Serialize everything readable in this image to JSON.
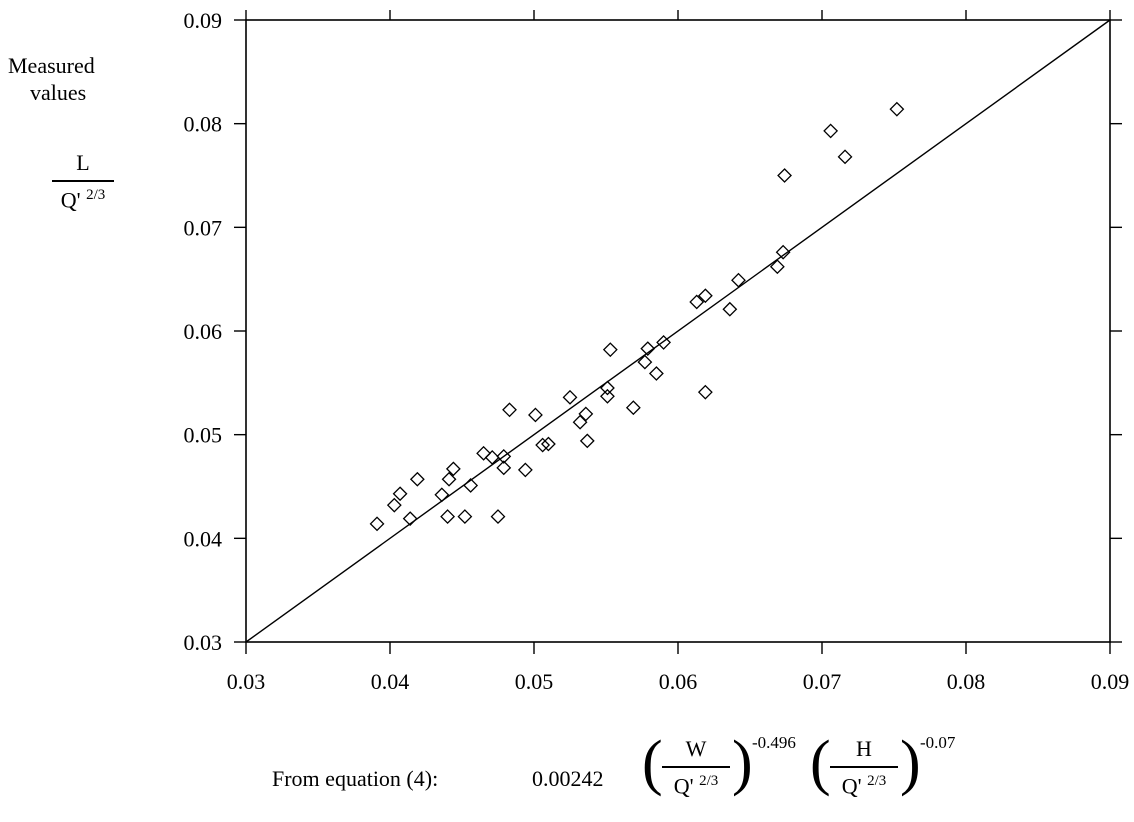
{
  "y_label": {
    "line1": "Measured",
    "line2": "values",
    "num": "L",
    "den_base": "Q'",
    "den_exp": "2/3"
  },
  "x_label": {
    "prefix": "From equation (4):",
    "coef": "0.00242",
    "frac1_num": "W",
    "frac1_den_base": "Q'",
    "frac1_den_exp": "2/3",
    "exp1": "-0.496",
    "frac2_num": "H",
    "frac2_den_base": "Q'",
    "frac2_den_exp": "2/3",
    "exp2": "-0.07"
  },
  "chart_data": {
    "type": "scatter",
    "title": "",
    "xlim": [
      0.03,
      0.09
    ],
    "ylim": [
      0.03,
      0.09
    ],
    "xticks": [
      "0.03",
      "0.04",
      "0.05",
      "0.06",
      "0.07",
      "0.08",
      "0.09"
    ],
    "yticks": [
      "0.03",
      "0.04",
      "0.05",
      "0.06",
      "0.07",
      "0.08",
      "0.09"
    ],
    "grid": false,
    "marker": "diamond",
    "reference_line": [
      [
        0.03,
        0.03
      ],
      [
        0.09,
        0.09
      ]
    ],
    "points": [
      [
        0.0391,
        0.0414
      ],
      [
        0.0403,
        0.0432
      ],
      [
        0.0407,
        0.0443
      ],
      [
        0.0414,
        0.0419
      ],
      [
        0.0419,
        0.0457
      ],
      [
        0.0436,
        0.0442
      ],
      [
        0.044,
        0.0421
      ],
      [
        0.0441,
        0.0457
      ],
      [
        0.0444,
        0.0467
      ],
      [
        0.0452,
        0.0421
      ],
      [
        0.0456,
        0.0451
      ],
      [
        0.0465,
        0.0482
      ],
      [
        0.0471,
        0.0478
      ],
      [
        0.0475,
        0.0421
      ],
      [
        0.0479,
        0.0479
      ],
      [
        0.0479,
        0.0468
      ],
      [
        0.0483,
        0.0524
      ],
      [
        0.0494,
        0.0466
      ],
      [
        0.0501,
        0.0519
      ],
      [
        0.0506,
        0.049
      ],
      [
        0.051,
        0.0491
      ],
      [
        0.0525,
        0.0536
      ],
      [
        0.0532,
        0.0512
      ],
      [
        0.0536,
        0.052
      ],
      [
        0.0537,
        0.0494
      ],
      [
        0.0551,
        0.0545
      ],
      [
        0.0551,
        0.0537
      ],
      [
        0.0553,
        0.0582
      ],
      [
        0.0569,
        0.0526
      ],
      [
        0.0577,
        0.057
      ],
      [
        0.0579,
        0.0583
      ],
      [
        0.0585,
        0.0559
      ],
      [
        0.059,
        0.0589
      ],
      [
        0.0613,
        0.0628
      ],
      [
        0.0619,
        0.0634
      ],
      [
        0.0619,
        0.0541
      ],
      [
        0.0636,
        0.0621
      ],
      [
        0.0642,
        0.0649
      ],
      [
        0.0669,
        0.0662
      ],
      [
        0.0673,
        0.0676
      ],
      [
        0.0674,
        0.075
      ],
      [
        0.0706,
        0.0793
      ],
      [
        0.0716,
        0.0768
      ],
      [
        0.0752,
        0.0814
      ]
    ]
  }
}
